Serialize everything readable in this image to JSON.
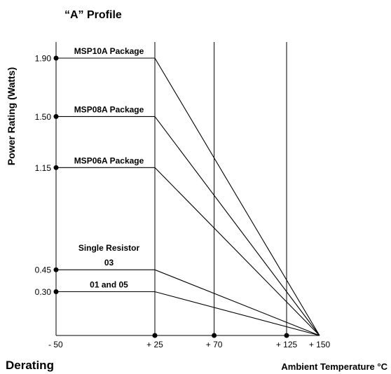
{
  "chart_data": {
    "type": "line",
    "title": "“A” Profile",
    "footer_label": "Derating",
    "xlabel": "Ambient Temperature °C",
    "ylabel": "Power Rating (Watts)",
    "xlim": [
      -50,
      150
    ],
    "ylim": [
      0,
      1.9
    ],
    "x_ticks": [
      {
        "value": -50,
        "label": "- 50"
      },
      {
        "value": 25,
        "label": "+ 25"
      },
      {
        "value": 70,
        "label": "+ 70"
      },
      {
        "value": 125,
        "label": "+ 125"
      },
      {
        "value": 150,
        "label": "+ 150"
      }
    ],
    "y_ticks": [
      {
        "value": 1.9,
        "label": "1.90"
      },
      {
        "value": 1.5,
        "label": "1.50"
      },
      {
        "value": 1.15,
        "label": "1.15"
      },
      {
        "value": 0.45,
        "label": "0.45"
      },
      {
        "value": 0.3,
        "label": "0.30"
      }
    ],
    "series": [
      {
        "name": "MSP10A Package",
        "label_lines": [
          "MSP10A Package"
        ],
        "points": [
          [
            -50,
            1.9
          ],
          [
            25,
            1.9
          ],
          [
            150,
            0
          ]
        ]
      },
      {
        "name": "MSP08A Package",
        "label_lines": [
          "MSP08A Package"
        ],
        "points": [
          [
            -50,
            1.5
          ],
          [
            25,
            1.5
          ],
          [
            150,
            0
          ]
        ]
      },
      {
        "name": "MSP06A Package",
        "label_lines": [
          "MSP06A Package"
        ],
        "points": [
          [
            -50,
            1.15
          ],
          [
            25,
            1.15
          ],
          [
            150,
            0
          ]
        ]
      },
      {
        "name": "Single Resistor 03",
        "label_lines": [
          "Single Resistor",
          "03"
        ],
        "points": [
          [
            -50,
            0.45
          ],
          [
            25,
            0.45
          ],
          [
            150,
            0
          ]
        ]
      },
      {
        "name": "01 and 05",
        "label_lines": [
          "01 and 05"
        ],
        "points": [
          [
            -50,
            0.3
          ],
          [
            25,
            0.3
          ],
          [
            150,
            0
          ]
        ]
      }
    ]
  }
}
